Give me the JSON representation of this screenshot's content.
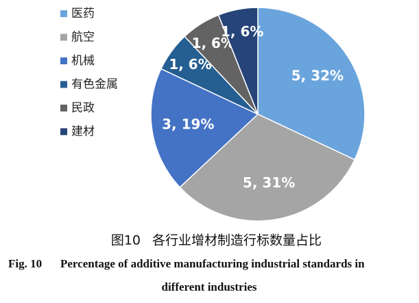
{
  "chart_data": {
    "type": "pie",
    "categories": [
      "医药",
      "航空",
      "机械",
      "有色金属",
      "民政",
      "建材"
    ],
    "values": [
      32,
      31,
      19,
      6,
      6,
      6
    ],
    "value_labels": [
      "5, 32%",
      "5, 31%",
      "3, 19%",
      "1, 6%",
      "1, 6%",
      "1, 6%"
    ],
    "colors": [
      "#6aa4dc",
      "#a5a5a5",
      "#4472c4",
      "#255e91",
      "#636363",
      "#264478"
    ],
    "legend": "upper left",
    "caption_number_cn": "图10",
    "caption_cn": "各行业增材制造行标数量占比",
    "caption_number_en": "Fig. 10",
    "caption_en": [
      "Percentage of additive manufacturing industrial standards in",
      "different industries"
    ]
  }
}
